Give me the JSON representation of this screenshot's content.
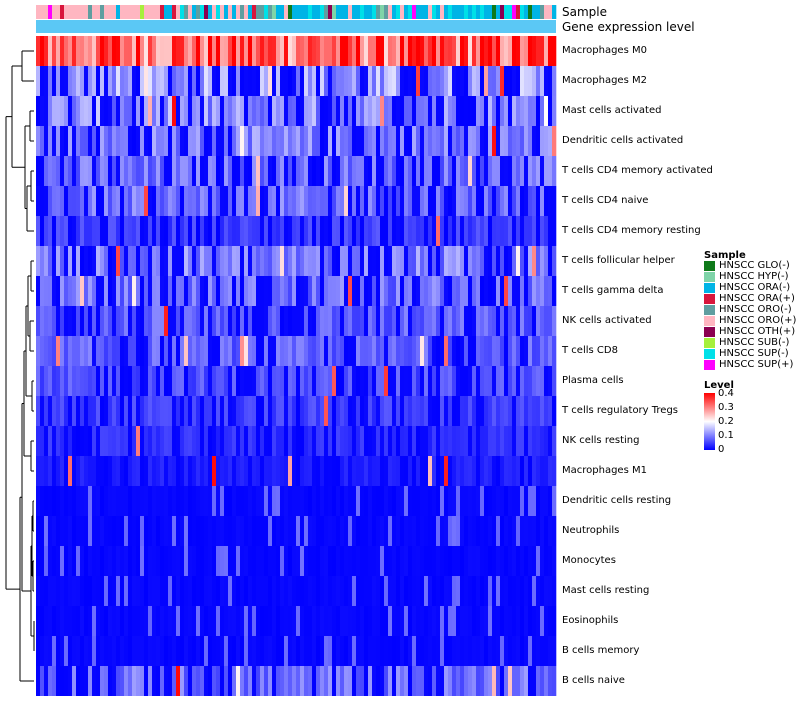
{
  "chart_data": {
    "type": "heatmap",
    "annotation_tracks": [
      "Sample",
      "Gene expression level"
    ],
    "rows": [
      "Macrophages M0",
      "Macrophages M2",
      "Mast cells activated",
      "Dendritic cells activated",
      "T cells CD4 memory activated",
      "T cells CD4 naive",
      "T cells CD4 memory resting",
      "T cells follicular helper",
      "T cells gamma delta",
      "NK cells activated",
      "T cells CD8",
      "Plasma cells",
      "T cells regulatory  Tregs",
      "NK cells resting",
      "Macrophages M1",
      "Dendritic cells resting",
      "Neutrophils",
      "Monocytes",
      "Mast cells resting",
      "Eosinophils",
      "B cells memory",
      "B cells naive"
    ],
    "row_mean_levels": [
      0.33,
      0.1,
      0.09,
      0.08,
      0.07,
      0.07,
      0.04,
      0.08,
      0.07,
      0.06,
      0.06,
      0.05,
      0.04,
      0.03,
      0.02,
      0.01,
      0.01,
      0.01,
      0.01,
      0.005,
      0.005,
      0.07
    ],
    "sample_legend": {
      "title": "Sample",
      "items": [
        {
          "label": "HNSCC GLO(-)",
          "color": "#0f7a1a"
        },
        {
          "label": "HNSCC HYP(-)",
          "color": "#7fd4a8"
        },
        {
          "label": "HNSCC ORA(-)",
          "color": "#00b4e6"
        },
        {
          "label": "HNSCC ORA(+)",
          "color": "#d8163c"
        },
        {
          "label": "HNSCC ORO(-)",
          "color": "#5f9ea0"
        },
        {
          "label": "HNSCC ORO(+)",
          "color": "#ffb6c1"
        },
        {
          "label": "HNSCC OTH(+)",
          "color": "#8b0050"
        },
        {
          "label": "HNSCC SUB(-)",
          "color": "#a6f03c"
        },
        {
          "label": "HNSCC SUP(-)",
          "color": "#00e0e8"
        },
        {
          "label": "HNSCC SUP(+)",
          "color": "#ff00ff"
        }
      ]
    },
    "level_legend": {
      "title": "Level",
      "ticks": [
        "0.4",
        "0.3",
        "0.2",
        "0.1",
        "0"
      ],
      "range": [
        0,
        0.4
      ],
      "colors": {
        "low": "#0000ff",
        "mid": "#ffffff",
        "high": "#ff0000"
      }
    },
    "expression_bar_color": "#5bc8f5"
  }
}
